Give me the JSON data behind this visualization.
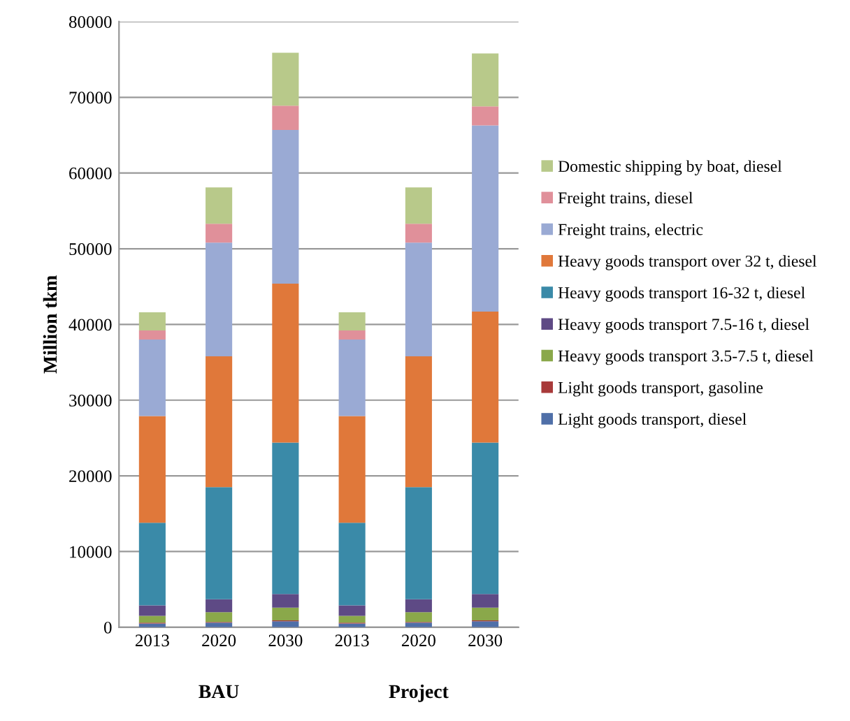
{
  "chart_data": {
    "type": "bar",
    "stacked": true,
    "ylabel": "Million tkm",
    "categories": [
      "2013",
      "2020",
      "2030",
      "2013",
      "2020",
      "2030"
    ],
    "annotations": [
      "BAU",
      "Project"
    ],
    "ylim": [
      0,
      80000
    ],
    "yticks": [
      0,
      10000,
      20000,
      30000,
      40000,
      50000,
      60000,
      70000,
      80000
    ],
    "grid": "y",
    "legend": "right",
    "series": [
      {
        "name": "Light goods transport, diesel",
        "color": "#4f6fa8",
        "values": [
          500,
          600,
          800,
          500,
          600,
          800
        ]
      },
      {
        "name": "Light goods transport, gasoline",
        "color": "#a83a3a",
        "values": [
          100,
          100,
          100,
          100,
          100,
          100
        ]
      },
      {
        "name": "Heavy goods transport 3.5-7.5 t, diesel",
        "color": "#8aa84a",
        "values": [
          900,
          1300,
          1700,
          900,
          1300,
          1700
        ]
      },
      {
        "name": "Heavy goods transport 7.5-16 t, diesel",
        "color": "#5e4a85",
        "values": [
          1400,
          1700,
          1800,
          1400,
          1700,
          1800
        ]
      },
      {
        "name": "Heavy goods transport 16-32 t, diesel",
        "color": "#3a8aa8",
        "values": [
          10900,
          14800,
          20000,
          10900,
          14800,
          20000
        ]
      },
      {
        "name": "Heavy goods transport over 32 t, diesel",
        "color": "#e0783a",
        "values": [
          14100,
          17300,
          21000,
          14100,
          17300,
          17300
        ]
      },
      {
        "name": "Freight trains, electric",
        "color": "#9aaad4",
        "values": [
          10100,
          15000,
          20300,
          10100,
          15000,
          24600
        ]
      },
      {
        "name": "Freight trains, diesel",
        "color": "#e0909a",
        "values": [
          1200,
          2500,
          3200,
          1200,
          2500,
          2500
        ]
      },
      {
        "name": "Domestic shipping by boat, diesel",
        "color": "#b8c98a",
        "values": [
          2400,
          4800,
          7000,
          2400,
          4800,
          7000
        ]
      }
    ]
  }
}
